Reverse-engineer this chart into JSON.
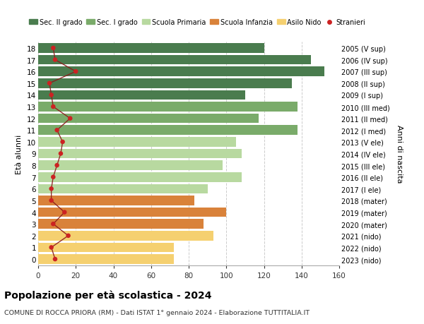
{
  "ages": [
    18,
    17,
    16,
    15,
    14,
    13,
    12,
    11,
    10,
    9,
    8,
    7,
    6,
    5,
    4,
    3,
    2,
    1,
    0
  ],
  "right_labels": [
    "2005 (V sup)",
    "2006 (IV sup)",
    "2007 (III sup)",
    "2008 (II sup)",
    "2009 (I sup)",
    "2010 (III med)",
    "2011 (II med)",
    "2012 (I med)",
    "2013 (V ele)",
    "2014 (IV ele)",
    "2015 (III ele)",
    "2016 (II ele)",
    "2017 (I ele)",
    "2018 (mater)",
    "2019 (mater)",
    "2020 (mater)",
    "2021 (nido)",
    "2022 (nido)",
    "2023 (nido)"
  ],
  "bar_values": [
    120,
    145,
    152,
    135,
    110,
    138,
    117,
    138,
    105,
    108,
    98,
    108,
    90,
    83,
    100,
    88,
    93,
    72,
    72
  ],
  "bar_colors": [
    "#4a7c4e",
    "#4a7c4e",
    "#4a7c4e",
    "#4a7c4e",
    "#4a7c4e",
    "#7aab6a",
    "#7aab6a",
    "#7aab6a",
    "#b8d9a0",
    "#b8d9a0",
    "#b8d9a0",
    "#b8d9a0",
    "#b8d9a0",
    "#d9823a",
    "#d9823a",
    "#d9823a",
    "#f5d070",
    "#f5d070",
    "#f5d070"
  ],
  "stranieri_values": [
    8,
    9,
    20,
    6,
    7,
    8,
    17,
    10,
    13,
    12,
    10,
    8,
    7,
    7,
    14,
    8,
    16,
    7,
    9
  ],
  "legend_labels": [
    "Sec. II grado",
    "Sec. I grado",
    "Scuola Primaria",
    "Scuola Infanzia",
    "Asilo Nido",
    "Stranieri"
  ],
  "legend_colors": [
    "#4a7c4e",
    "#7aab6a",
    "#b8d9a0",
    "#d9823a",
    "#f5d070",
    "#cc2222"
  ],
  "title_main": "Popolazione per età scolastica - 2024",
  "title_sub": "COMUNE DI ROCCA PRIORA (RM) - Dati ISTAT 1° gennaio 2024 - Elaborazione TUTTITALIA.IT",
  "ylabel_left": "Età alunni",
  "ylabel_right": "Anni di nascita",
  "xlim": [
    0,
    160
  ],
  "xticks": [
    0,
    20,
    40,
    60,
    80,
    100,
    120,
    140,
    160
  ],
  "ylim": [
    -0.55,
    18.55
  ],
  "background_color": "#ffffff",
  "grid_color": "#cccccc",
  "stranieri_line_color": "#8b1a1a",
  "stranieri_dot_color": "#cc2222",
  "bar_height": 0.82
}
